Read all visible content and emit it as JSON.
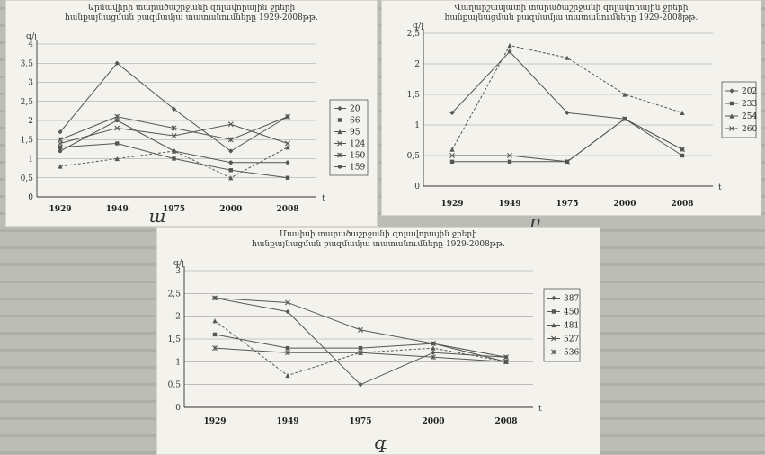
{
  "background": {
    "color": "#bdbdb8",
    "panel_color": "#f3f2ec",
    "line_color": "#555555"
  },
  "chart_data": [
    {
      "type": "line",
      "title": "Արմավիրի տարածաշրջանի զոլավորային ջրերի",
      "subtitle": "հանքայնացման բազմամյա տատանումները 1929-2008թթ.",
      "ylabel": "գ/լ",
      "xlabel": "t",
      "panel_label": "ա",
      "categories": [
        "1929",
        "1949",
        "1975",
        "2000",
        "2008"
      ],
      "ylim": [
        0,
        4
      ],
      "yticks": [
        "0",
        "0,5",
        "1",
        "1,5",
        "2",
        "2,5",
        "3",
        "3,5",
        "4"
      ],
      "grid": true,
      "legend_position": "right",
      "series": [
        {
          "name": "20",
          "values": [
            1.7,
            3.5,
            2.3,
            1.2,
            2.1
          ]
        },
        {
          "name": "66",
          "values": [
            1.3,
            1.4,
            1.0,
            0.7,
            0.5
          ]
        },
        {
          "name": "95",
          "values": [
            0.8,
            1.0,
            1.2,
            0.5,
            1.3
          ]
        },
        {
          "name": "124",
          "values": [
            1.4,
            1.8,
            1.6,
            1.9,
            1.4
          ]
        },
        {
          "name": "150",
          "values": [
            1.5,
            2.1,
            1.8,
            1.5,
            2.1
          ]
        },
        {
          "name": "159",
          "values": [
            1.2,
            2.0,
            1.2,
            0.9,
            0.9
          ]
        }
      ]
    },
    {
      "type": "line",
      "title": "Վաղարշապատի տարածաշրջանի զոլավորային ջրերի",
      "subtitle": "հանքայնացման բազմամյա տատանումները 1929-2008թթ.",
      "ylabel": "գ/լ",
      "xlabel": "t",
      "panel_label": "բ",
      "categories": [
        "1929",
        "1949",
        "1975",
        "2000",
        "2008"
      ],
      "ylim": [
        0,
        2.5
      ],
      "yticks": [
        "0",
        "0,5",
        "1",
        "1,5",
        "2",
        "2,5"
      ],
      "grid": true,
      "legend_position": "right",
      "series": [
        {
          "name": "202",
          "values": [
            1.2,
            2.2,
            1.2,
            1.1,
            0.6
          ]
        },
        {
          "name": "233",
          "values": [
            0.4,
            0.4,
            0.4,
            1.1,
            0.5
          ]
        },
        {
          "name": "254",
          "values": [
            0.6,
            2.3,
            2.1,
            1.5,
            1.2
          ]
        },
        {
          "name": "260",
          "values": [
            0.5,
            0.5,
            0.4,
            1.1,
            0.6
          ]
        }
      ]
    },
    {
      "type": "line",
      "title": "Մասիսի տարածաշրջանի զոլավորային ջրերի",
      "subtitle": "հանքայնացման բազմամյա տատանումները 1929-2008թթ.",
      "ylabel": "գ/լ",
      "xlabel": "t",
      "panel_label": "գ",
      "categories": [
        "1929",
        "1949",
        "1975",
        "2000",
        "2008"
      ],
      "ylim": [
        0,
        3
      ],
      "yticks": [
        "0",
        "0,5",
        "1",
        "1,5",
        "2",
        "2,5",
        "3"
      ],
      "grid": true,
      "legend_position": "right",
      "series": [
        {
          "name": "387",
          "values": [
            2.4,
            2.1,
            0.5,
            1.2,
            1.1
          ]
        },
        {
          "name": "450",
          "values": [
            1.6,
            1.3,
            1.3,
            1.4,
            1.0
          ]
        },
        {
          "name": "481",
          "values": [
            1.9,
            0.7,
            1.2,
            1.3,
            1.0
          ]
        },
        {
          "name": "527",
          "values": [
            2.4,
            2.3,
            1.7,
            1.4,
            1.1
          ]
        },
        {
          "name": "536",
          "values": [
            1.3,
            1.2,
            1.2,
            1.1,
            1.0
          ]
        }
      ]
    }
  ]
}
